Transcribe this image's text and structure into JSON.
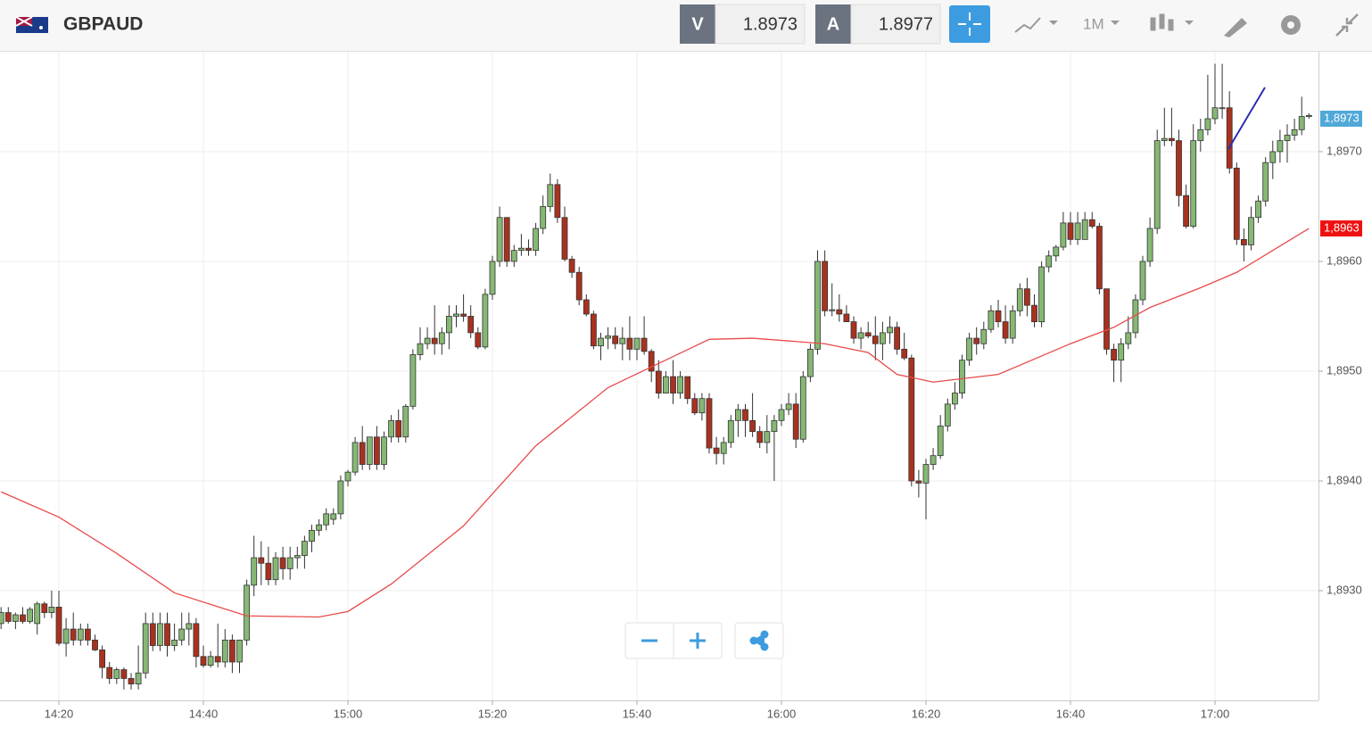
{
  "header": {
    "symbol": "GBPAUD",
    "bid_label": "V",
    "bid": "1.8973",
    "ask_label": "A",
    "ask": "1.8977",
    "timeframe": "1M"
  },
  "chart_data": {
    "type": "candlestick",
    "up_color": "#86b874",
    "down_color": "#a8321f",
    "ylim": [
      1.892,
      1.89791
    ],
    "yticks": [
      {
        "value": 1.893,
        "label": "1,8930"
      },
      {
        "value": 1.894,
        "label": "1,8940"
      },
      {
        "value": 1.895,
        "label": "1,8950"
      },
      {
        "value": 1.896,
        "label": "1,8960"
      },
      {
        "value": 1.897,
        "label": "1,8970"
      }
    ],
    "grid": true,
    "last_price": {
      "value": 1.8973,
      "label": "1,8973",
      "color": "#4fa8d8"
    },
    "ma_price": {
      "value": 1.8963,
      "label": "1,8963",
      "color": "#ee1111"
    },
    "categories": [
      null,
      null,
      null,
      null,
      null,
      null,
      null,
      null,
      "14:20",
      null,
      null,
      null,
      null,
      null,
      null,
      null,
      null,
      null,
      null,
      null,
      null,
      null,
      null,
      null,
      null,
      null,
      null,
      null,
      "14:40",
      null,
      null,
      null,
      null,
      null,
      null,
      null,
      null,
      null,
      null,
      null,
      null,
      null,
      null,
      null,
      null,
      null,
      null,
      null,
      "15:00",
      null,
      null,
      null,
      null,
      null,
      null,
      null,
      null,
      null,
      null,
      null,
      null,
      null,
      null,
      null,
      null,
      null,
      null,
      null,
      "15:20",
      null,
      null,
      null,
      null,
      null,
      null,
      null,
      null,
      null,
      null,
      null,
      null,
      null,
      null,
      null,
      null,
      null,
      null,
      null,
      "15:40",
      null,
      null,
      null,
      null,
      null,
      null,
      null,
      null,
      null,
      null,
      null,
      null,
      null,
      null,
      null,
      null,
      null,
      null,
      null,
      "16:00",
      null,
      null,
      null,
      null,
      null,
      null,
      null,
      null,
      null,
      null,
      null,
      null,
      null,
      null,
      null,
      null,
      null,
      null,
      null,
      "16:20",
      null,
      null,
      null,
      null,
      null,
      null,
      null,
      null,
      null,
      null,
      null,
      null,
      null,
      null,
      null,
      null,
      null,
      null,
      null,
      "16:40",
      null,
      null,
      null,
      null,
      null,
      null,
      null,
      null,
      null,
      null,
      null,
      null,
      null,
      null,
      null,
      null,
      null,
      null,
      null,
      "17:00",
      null,
      null,
      null,
      null,
      null,
      null,
      null,
      null,
      null,
      null,
      null,
      null,
      null
    ],
    "candles": [
      [
        1.8927,
        1.89285,
        1.89265,
        1.8928
      ],
      [
        1.8928,
        1.89285,
        1.8927,
        1.89272
      ],
      [
        1.89272,
        1.8928,
        1.89265,
        1.89278
      ],
      [
        1.89278,
        1.89285,
        1.8927,
        1.89272
      ],
      [
        1.89272,
        1.89285,
        1.8927,
        1.89283
      ],
      [
        1.8927,
        1.8929,
        1.8926,
        1.89288
      ],
      [
        1.89288,
        1.8929,
        1.89275,
        1.8928
      ],
      [
        1.8928,
        1.893,
        1.89275,
        1.89285
      ],
      [
        1.89285,
        1.893,
        1.8925,
        1.89252
      ],
      [
        1.89252,
        1.89275,
        1.8924,
        1.89265
      ],
      [
        1.89265,
        1.8928,
        1.8925,
        1.89255
      ],
      [
        1.89255,
        1.8927,
        1.8925,
        1.89265
      ],
      [
        1.89265,
        1.8927,
        1.8925,
        1.89255
      ],
      [
        1.89255,
        1.8926,
        1.89245,
        1.89246
      ],
      [
        1.89246,
        1.8925,
        1.8922,
        1.8923
      ],
      [
        1.8923,
        1.89235,
        1.89215,
        1.8922
      ],
      [
        1.8922,
        1.8923,
        1.89215,
        1.89228
      ],
      [
        1.89228,
        1.8923,
        1.8921,
        1.8922
      ],
      [
        1.8922,
        1.89225,
        1.8921,
        1.89215
      ],
      [
        1.89215,
        1.8925,
        1.8921,
        1.89225
      ],
      [
        1.89225,
        1.8928,
        1.8922,
        1.8927
      ],
      [
        1.8927,
        1.8928,
        1.89245,
        1.8925
      ],
      [
        1.8925,
        1.8928,
        1.89245,
        1.8927
      ],
      [
        1.8927,
        1.8928,
        1.8924,
        1.8925
      ],
      [
        1.8925,
        1.8927,
        1.89245,
        1.89255
      ],
      [
        1.89255,
        1.8928,
        1.8925,
        1.89265
      ],
      [
        1.89265,
        1.8928,
        1.8925,
        1.8927
      ],
      [
        1.8927,
        1.89275,
        1.8923,
        1.8924
      ],
      [
        1.8924,
        1.8925,
        1.8923,
        1.89232
      ],
      [
        1.89232,
        1.89245,
        1.8923,
        1.8924
      ],
      [
        1.8924,
        1.8927,
        1.8923,
        1.89235
      ],
      [
        1.89235,
        1.89265,
        1.8923,
        1.89255
      ],
      [
        1.89255,
        1.8926,
        1.89225,
        1.89235
      ],
      [
        1.89235,
        1.89255,
        1.89225,
        1.89255
      ],
      [
        1.89255,
        1.8931,
        1.8925,
        1.89305
      ],
      [
        1.89305,
        1.8935,
        1.89295,
        1.8933
      ],
      [
        1.8933,
        1.89345,
        1.89305,
        1.89325
      ],
      [
        1.89325,
        1.8934,
        1.89305,
        1.8931
      ],
      [
        1.8931,
        1.89335,
        1.89305,
        1.8933
      ],
      [
        1.8933,
        1.8934,
        1.8931,
        1.8932
      ],
      [
        1.8932,
        1.8934,
        1.8931,
        1.8933
      ],
      [
        1.8933,
        1.8934,
        1.8932,
        1.89332
      ],
      [
        1.89332,
        1.8935,
        1.8932,
        1.89345
      ],
      [
        1.89345,
        1.8936,
        1.89335,
        1.89355
      ],
      [
        1.89355,
        1.89365,
        1.8935,
        1.8936
      ],
      [
        1.8936,
        1.89375,
        1.89355,
        1.8937
      ],
      [
        1.89365,
        1.89375,
        1.8936,
        1.8937
      ],
      [
        1.8937,
        1.89405,
        1.89365,
        1.894
      ],
      [
        1.894,
        1.8941,
        1.89395,
        1.89408
      ],
      [
        1.89408,
        1.8944,
        1.89405,
        1.89435
      ],
      [
        1.89435,
        1.8945,
        1.8941,
        1.89415
      ],
      [
        1.89415,
        1.8944,
        1.8941,
        1.8944
      ],
      [
        1.8944,
        1.8945,
        1.8941,
        1.89415
      ],
      [
        1.89415,
        1.89445,
        1.8941,
        1.8944
      ],
      [
        1.8944,
        1.8946,
        1.89435,
        1.89455
      ],
      [
        1.89455,
        1.89465,
        1.89435,
        1.8944
      ],
      [
        1.8944,
        1.8947,
        1.89435,
        1.89468
      ],
      [
        1.89468,
        1.8952,
        1.89465,
        1.89515
      ],
      [
        1.89515,
        1.8954,
        1.8951,
        1.89525
      ],
      [
        1.89525,
        1.8954,
        1.8952,
        1.8953
      ],
      [
        1.8953,
        1.8956,
        1.89515,
        1.89525
      ],
      [
        1.89525,
        1.8954,
        1.89515,
        1.89535
      ],
      [
        1.89535,
        1.8956,
        1.8952,
        1.8955
      ],
      [
        1.8955,
        1.8956,
        1.8954,
        1.89552
      ],
      [
        1.89552,
        1.8957,
        1.89545,
        1.8955
      ],
      [
        1.8955,
        1.8956,
        1.8953,
        1.89535
      ],
      [
        1.89535,
        1.8954,
        1.8952,
        1.89522
      ],
      [
        1.89522,
        1.89575,
        1.8952,
        1.8957
      ],
      [
        1.8957,
        1.89605,
        1.89565,
        1.896
      ],
      [
        1.896,
        1.8965,
        1.89595,
        1.8964
      ],
      [
        1.8964,
        1.8964,
        1.89595,
        1.896
      ],
      [
        1.896,
        1.89615,
        1.89595,
        1.8961
      ],
      [
        1.8961,
        1.89625,
        1.89605,
        1.89612
      ],
      [
        1.89612,
        1.8962,
        1.89605,
        1.8961
      ],
      [
        1.8961,
        1.89635,
        1.89605,
        1.8963
      ],
      [
        1.8963,
        1.8966,
        1.89625,
        1.8965
      ],
      [
        1.8965,
        1.8968,
        1.89645,
        1.8967
      ],
      [
        1.8967,
        1.89675,
        1.89635,
        1.8964
      ],
      [
        1.8964,
        1.8965,
        1.896,
        1.89602
      ],
      [
        1.89602,
        1.89605,
        1.89585,
        1.8959
      ],
      [
        1.8959,
        1.89595,
        1.8956,
        1.89565
      ],
      [
        1.89565,
        1.8957,
        1.8955,
        1.89552
      ],
      [
        1.89552,
        1.89555,
        1.8952,
        1.89523
      ],
      [
        1.89523,
        1.89535,
        1.8951,
        1.8953
      ],
      [
        1.8953,
        1.8954,
        1.8952,
        1.89532
      ],
      [
        1.89532,
        1.8954,
        1.8952,
        1.89525
      ],
      [
        1.89525,
        1.8954,
        1.8951,
        1.8953
      ],
      [
        1.8953,
        1.8955,
        1.8951,
        1.8952
      ],
      [
        1.8952,
        1.8953,
        1.8951,
        1.8953
      ],
      [
        1.8953,
        1.8955,
        1.89515,
        1.89518
      ],
      [
        1.89518,
        1.8952,
        1.8949,
        1.895
      ],
      [
        1.895,
        1.8951,
        1.89475,
        1.8948
      ],
      [
        1.8948,
        1.895,
        1.8948,
        1.89495
      ],
      [
        1.89495,
        1.8951,
        1.8947,
        1.8948
      ],
      [
        1.8948,
        1.895,
        1.89475,
        1.89495
      ],
      [
        1.89495,
        1.89495,
        1.8947,
        1.89475
      ],
      [
        1.89475,
        1.8948,
        1.8946,
        1.89462
      ],
      [
        1.89462,
        1.8948,
        1.89455,
        1.89475
      ],
      [
        1.89475,
        1.8948,
        1.89425,
        1.8943
      ],
      [
        1.8943,
        1.8944,
        1.89415,
        1.89425
      ],
      [
        1.89425,
        1.8944,
        1.89415,
        1.89435
      ],
      [
        1.89435,
        1.8946,
        1.8943,
        1.89455
      ],
      [
        1.89455,
        1.8947,
        1.8944,
        1.89465
      ],
      [
        1.89465,
        1.8947,
        1.8944,
        1.89455
      ],
      [
        1.89455,
        1.8948,
        1.8944,
        1.89445
      ],
      [
        1.89445,
        1.8945,
        1.8943,
        1.89435
      ],
      [
        1.89435,
        1.8946,
        1.89425,
        1.89445
      ],
      [
        1.89445,
        1.8946,
        1.894,
        1.89455
      ],
      [
        1.89455,
        1.8947,
        1.8945,
        1.89465
      ],
      [
        1.89465,
        1.8948,
        1.8946,
        1.8947
      ],
      [
        1.8947,
        1.8948,
        1.8943,
        1.89438
      ],
      [
        1.89438,
        1.895,
        1.89435,
        1.89495
      ],
      [
        1.89495,
        1.89525,
        1.8949,
        1.8952
      ],
      [
        1.8952,
        1.8961,
        1.89515,
        1.896
      ],
      [
        1.896,
        1.8961,
        1.8955,
        1.89555
      ],
      [
        1.89555,
        1.8958,
        1.8955,
        1.89556
      ],
      [
        1.89556,
        1.8957,
        1.89545,
        1.89552
      ],
      [
        1.89552,
        1.8956,
        1.89545,
        1.89545
      ],
      [
        1.89545,
        1.8955,
        1.89525,
        1.8953
      ],
      [
        1.8953,
        1.8954,
        1.8952,
        1.89535
      ],
      [
        1.89535,
        1.89545,
        1.8953,
        1.89532
      ],
      [
        1.89532,
        1.8955,
        1.8951,
        1.89525
      ],
      [
        1.89525,
        1.89545,
        1.8951,
        1.89535
      ],
      [
        1.89535,
        1.8955,
        1.89525,
        1.8954
      ],
      [
        1.8954,
        1.89545,
        1.89515,
        1.8952
      ],
      [
        1.8952,
        1.89535,
        1.8951,
        1.89512
      ],
      [
        1.89512,
        1.89515,
        1.89395,
        1.894
      ],
      [
        1.894,
        1.8941,
        1.89385,
        1.89398
      ],
      [
        1.89398,
        1.8942,
        1.89365,
        1.89415
      ],
      [
        1.89415,
        1.8943,
        1.8941,
        1.89423
      ],
      [
        1.89423,
        1.8946,
        1.8942,
        1.8945
      ],
      [
        1.8945,
        1.89475,
        1.89445,
        1.8947
      ],
      [
        1.8947,
        1.8949,
        1.89465,
        1.8948
      ],
      [
        1.8948,
        1.89515,
        1.89475,
        1.8951
      ],
      [
        1.8951,
        1.89535,
        1.89505,
        1.8953
      ],
      [
        1.8953,
        1.8954,
        1.89515,
        1.89525
      ],
      [
        1.89525,
        1.89545,
        1.8952,
        1.89538
      ],
      [
        1.89538,
        1.8956,
        1.89535,
        1.89555
      ],
      [
        1.89555,
        1.89565,
        1.8954,
        1.89545
      ],
      [
        1.89545,
        1.8956,
        1.89525,
        1.8953
      ],
      [
        1.8953,
        1.8956,
        1.89525,
        1.89555
      ],
      [
        1.89555,
        1.8958,
        1.8955,
        1.89575
      ],
      [
        1.89575,
        1.89585,
        1.8955,
        1.8956
      ],
      [
        1.8956,
        1.8957,
        1.8954,
        1.89545
      ],
      [
        1.89545,
        1.896,
        1.8954,
        1.89595
      ],
      [
        1.89595,
        1.8961,
        1.8959,
        1.89605
      ],
      [
        1.89605,
        1.89615,
        1.896,
        1.89613
      ],
      [
        1.89613,
        1.89645,
        1.8961,
        1.89635
      ],
      [
        1.89635,
        1.89645,
        1.89615,
        1.8962
      ],
      [
        1.8962,
        1.89645,
        1.89615,
        1.89635
      ],
      [
        1.8962,
        1.89645,
        1.8962,
        1.89638
      ],
      [
        1.89638,
        1.89645,
        1.8963,
        1.89632
      ],
      [
        1.89632,
        1.89635,
        1.8957,
        1.89575
      ],
      [
        1.89575,
        1.89575,
        1.89515,
        1.8952
      ],
      [
        1.8952,
        1.89525,
        1.8949,
        1.8951
      ],
      [
        1.8951,
        1.8953,
        1.8949,
        1.89525
      ],
      [
        1.89525,
        1.8955,
        1.8952,
        1.89535
      ],
      [
        1.89535,
        1.8957,
        1.8953,
        1.89565
      ],
      [
        1.89565,
        1.89605,
        1.8956,
        1.896
      ],
      [
        1.896,
        1.8964,
        1.89595,
        1.8963
      ],
      [
        1.8963,
        1.8972,
        1.89625,
        1.8971
      ],
      [
        1.8971,
        1.8974,
        1.89705,
        1.89712
      ],
      [
        1.89712,
        1.8974,
        1.89705,
        1.8971
      ],
      [
        1.8971,
        1.8972,
        1.8965,
        1.8966
      ],
      [
        1.8966,
        1.8967,
        1.8963,
        1.89632
      ],
      [
        1.89632,
        1.89725,
        1.8963,
        1.8971
      ],
      [
        1.8971,
        1.8973,
        1.897,
        1.8972
      ],
      [
        1.8972,
        1.8977,
        1.89715,
        1.8973
      ],
      [
        1.8973,
        1.8978,
        1.89725,
        1.8974
      ],
      [
        1.8974,
        1.8978,
        1.8973,
        1.8974
      ],
      [
        1.8974,
        1.89755,
        1.8968,
        1.89685
      ],
      [
        1.89685,
        1.8969,
        1.89615,
        1.8962
      ],
      [
        1.8962,
        1.8963,
        1.896,
        1.89615
      ],
      [
        1.89615,
        1.8965,
        1.8961,
        1.8964
      ],
      [
        1.8964,
        1.8966,
        1.89635,
        1.89655
      ],
      [
        1.89655,
        1.89695,
        1.8965,
        1.8969
      ],
      [
        1.8969,
        1.8971,
        1.89675,
        1.897
      ],
      [
        1.897,
        1.8972,
        1.8969,
        1.8971
      ],
      [
        1.8971,
        1.89725,
        1.8969,
        1.89715
      ],
      [
        1.89715,
        1.8973,
        1.8971,
        1.8972
      ],
      [
        1.8972,
        1.8975,
        1.89715,
        1.89732
      ],
      [
        1.89732,
        1.89735,
        1.8973,
        1.89733
      ]
    ],
    "moving_average": {
      "color": "#e84a4a",
      "x": [
        0,
        8,
        16,
        24,
        34,
        44,
        48,
        54,
        64,
        74,
        84,
        98,
        104,
        114,
        120,
        124,
        129,
        138,
        148,
        154,
        159,
        166,
        171,
        181
      ],
      "values": [
        1.8939,
        1.89367,
        1.89334,
        1.89298,
        1.89277,
        1.89276,
        1.89281,
        1.89306,
        1.89359,
        1.89432,
        1.89485,
        1.89529,
        1.8953,
        1.89525,
        1.89517,
        1.89497,
        1.8949,
        1.89497,
        1.89525,
        1.8954,
        1.89558,
        1.89576,
        1.8959,
        1.8963
      ]
    }
  }
}
